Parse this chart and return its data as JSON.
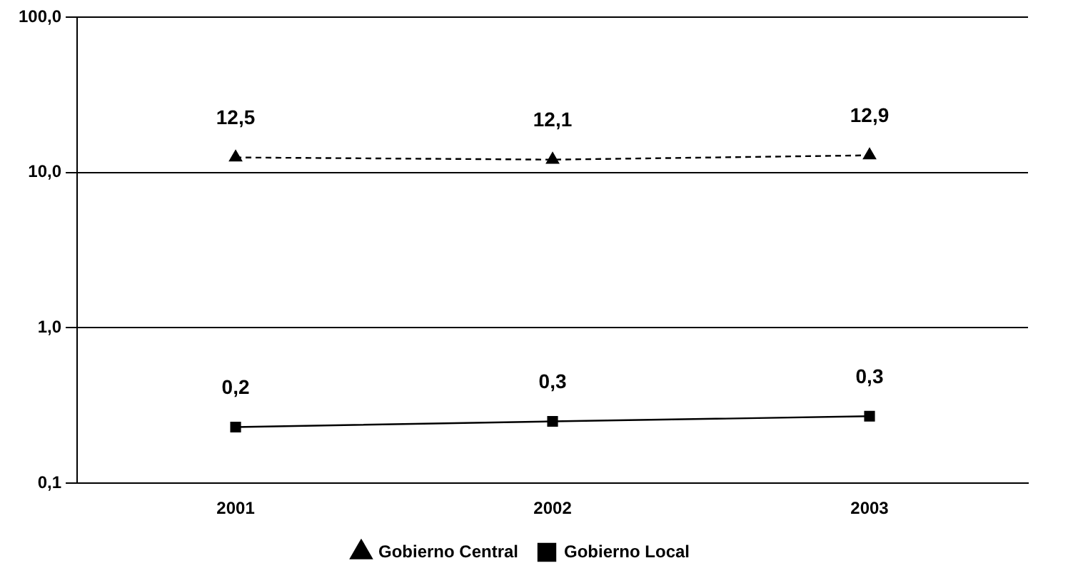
{
  "chart_data": {
    "type": "line",
    "categories": [
      "2001",
      "2002",
      "2003"
    ],
    "series": [
      {
        "name": "Gobierno Central",
        "color": "#000000",
        "values": [
          12.5,
          12.1,
          12.9
        ],
        "marker": "triangle",
        "line_style": "dashed",
        "value_labels": [
          "12,5",
          "12,1",
          "12,9"
        ]
      },
      {
        "name": "Gobierno Local",
        "color": "#000000",
        "values": [
          0.23,
          0.25,
          0.27
        ],
        "marker": "square",
        "line_style": "solid",
        "value_labels": [
          "0,2",
          "0,3",
          "0,3"
        ]
      }
    ],
    "log": true,
    "ylim": [
      0.1,
      100
    ],
    "yticks": [
      {
        "value": 0.1,
        "label": "0,1"
      },
      {
        "value": 1,
        "label": "1,0"
      },
      {
        "value": 10,
        "label": "10,0"
      },
      {
        "value": 100,
        "label": "100,0"
      }
    ],
    "grid": "y",
    "legend": "bottom"
  }
}
